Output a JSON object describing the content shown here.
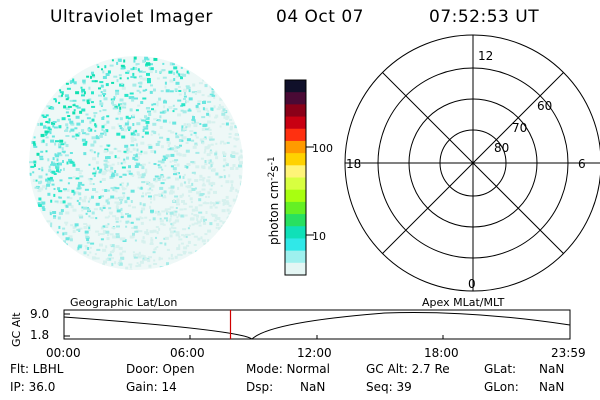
{
  "header": {
    "instrument": "Ultraviolet Imager",
    "date": "04 Oct 07",
    "time": "07:52:53 UT"
  },
  "colorbar": {
    "label": "photon cm-2s-1",
    "ticks": [
      "100",
      "10"
    ],
    "colors": [
      "#10102a",
      "#4a0a35",
      "#8a0018",
      "#c80012",
      "#ff3010",
      "#ff9a00",
      "#ffd200",
      "#fff478",
      "#d8ff40",
      "#a8ff10",
      "#64f024",
      "#28e060",
      "#10e0b8",
      "#30e8e8",
      "#9ef0ee",
      "#e4f6f4"
    ]
  },
  "polar_plot": {
    "mlt_labels": {
      "top": "12",
      "left": "18",
      "right": "6",
      "bottom": "0"
    },
    "lat_labels": [
      "60",
      "70",
      "80"
    ]
  },
  "timeline": {
    "ylabel": "GC Alt",
    "yticks": [
      "9.0",
      "1.8"
    ],
    "left_title": "Geographic Lat/Lon",
    "right_title": "Apex  MLat/MLT",
    "xticks": [
      "00:00",
      "06:00",
      "12:00",
      "18:00",
      "23:59"
    ],
    "current_fraction": 0.329
  },
  "status": {
    "row1": {
      "flt": "Flt: LBHL",
      "door": "Door: Open",
      "mode": "Mode: Normal",
      "gcalt": "GC Alt: 2.7 Re",
      "glat": "GLat:",
      "glat_val": "NaN"
    },
    "row2": {
      "ip": "IP: 36.0",
      "gain": "Gain: 14",
      "dsp": "Dsp:",
      "dsp_val": "NaN",
      "seq": "Seq: 39",
      "glon": "GLon:",
      "glon_val": "NaN"
    }
  }
}
